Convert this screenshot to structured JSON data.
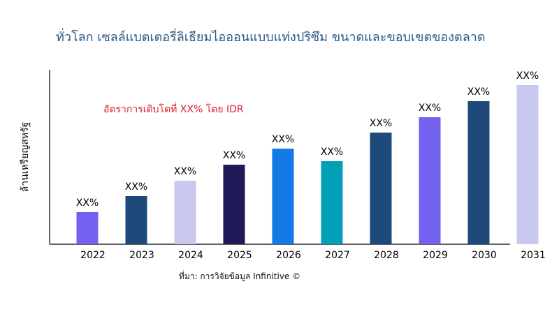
{
  "chart_data": {
    "type": "bar",
    "title": "ทั่วโลก เซลล์แบตเตอรี่ลิเธียมไอออนแบบแท่งปริซึม ขนาดและขอบเขตของตลาด",
    "xlabel": "",
    "ylabel": "ล้านเหรียญสหรัฐ",
    "annotation": "อัตราการเติบโตที่ XX% โดย IDR",
    "source": "ที่มา: การวิจัยข้อมูล Infinitive ©",
    "categories": [
      "2022",
      "2023",
      "2024",
      "2025",
      "2026",
      "2027",
      "2028",
      "2029",
      "2030",
      "2031"
    ],
    "values": [
      46,
      69,
      91,
      114,
      137,
      119,
      160,
      182,
      205,
      228
    ],
    "data_labels": [
      "XX%",
      "XX%",
      "XX%",
      "XX%",
      "XX%",
      "XX%",
      "XX%",
      "XX%",
      "XX%",
      "XX%"
    ],
    "colors": [
      "#7362f0",
      "#1d4a7a",
      "#c9c9f0",
      "#1e1a5a",
      "#137ae6",
      "#00a1b8",
      "#1d4a7a",
      "#7362f0",
      "#1d4a7a",
      "#c9c9f0"
    ],
    "ylim": [
      0,
      250
    ],
    "grid": false,
    "y_ticks_shown": false
  }
}
